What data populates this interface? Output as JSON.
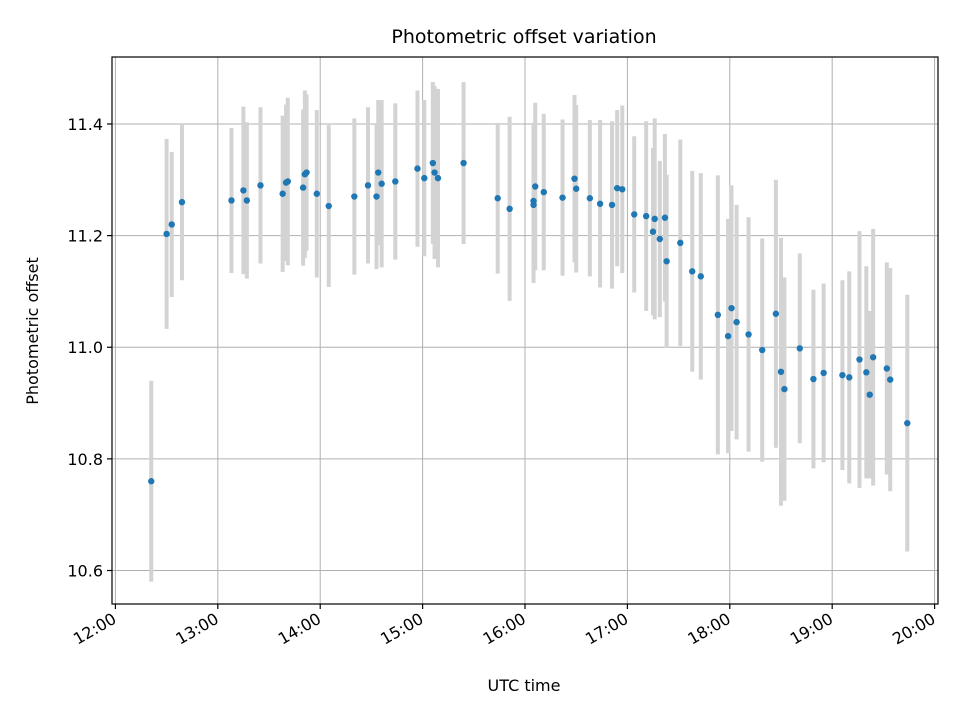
{
  "chart_data": {
    "type": "scatter",
    "title": "Photometric offset variation",
    "xlabel": "UTC time",
    "ylabel": "Photometric offset",
    "x_ticks": [
      "12:00",
      "13:00",
      "14:00",
      "15:00",
      "16:00",
      "17:00",
      "18:00",
      "19:00",
      "20:00"
    ],
    "y_ticks": [
      "10.6",
      "10.8",
      "11.0",
      "11.2",
      "11.4"
    ],
    "xlim": [
      "11:58",
      "20:02"
    ],
    "ylim": [
      10.54,
      11.52
    ],
    "grid": true,
    "colors": {
      "points": "#1f77b4",
      "errorbars": "#d3d3d3",
      "grid": "#b0b0b0"
    },
    "series": [
      {
        "x": [
          "12:21",
          "12:30",
          "12:33",
          "12:39",
          "13:08",
          "13:15",
          "13:17",
          "13:25",
          "13:38",
          "13:40",
          "13:41",
          "13:50",
          "13:51",
          "13:52",
          "13:58",
          "14:05",
          "14:20",
          "14:28",
          "14:33",
          "14:34",
          "14:36",
          "14:44",
          "14:57",
          "15:01",
          "15:06",
          "15:07",
          "15:09",
          "15:24",
          "15:44",
          "15:51",
          "16:05",
          "16:05",
          "16:06",
          "16:11",
          "16:22",
          "16:29",
          "16:30",
          "16:38",
          "16:44",
          "16:51",
          "16:54",
          "16:57",
          "17:04",
          "17:11",
          "17:15",
          "17:16",
          "17:19",
          "17:22",
          "17:23",
          "17:31",
          "17:38",
          "17:43",
          "17:53",
          "17:59",
          "18:01",
          "18:04",
          "18:11",
          "18:19",
          "18:27",
          "18:30",
          "18:32",
          "18:41",
          "18:49",
          "18:55",
          "19:06",
          "19:10",
          "19:16",
          "19:20",
          "19:22",
          "19:24",
          "19:32",
          "19:34",
          "19:44"
        ],
        "y": [
          10.76,
          11.203,
          11.22,
          11.26,
          11.263,
          11.281,
          11.263,
          11.29,
          11.275,
          11.295,
          11.297,
          11.286,
          11.31,
          11.313,
          11.275,
          11.253,
          11.27,
          11.29,
          11.27,
          11.313,
          11.293,
          11.297,
          11.32,
          11.303,
          11.33,
          11.313,
          11.303,
          11.33,
          11.267,
          11.248,
          11.255,
          11.262,
          11.288,
          11.278,
          11.268,
          11.302,
          11.284,
          11.267,
          11.257,
          11.255,
          11.285,
          11.283,
          11.238,
          11.235,
          11.207,
          11.23,
          11.194,
          11.232,
          11.154,
          11.187,
          11.136,
          11.127,
          11.058,
          11.02,
          11.07,
          11.045,
          11.023,
          10.995,
          11.06,
          10.956,
          10.925,
          10.998,
          10.943,
          10.954,
          10.95,
          10.946,
          10.978,
          10.955,
          10.915,
          10.982,
          10.962,
          10.942,
          10.864
        ],
        "err": [
          0.18,
          0.17,
          0.13,
          0.14,
          0.13,
          0.15,
          0.14,
          0.14,
          0.14,
          0.14,
          0.15,
          0.14,
          0.15,
          0.14,
          0.15,
          0.145,
          0.14,
          0.14,
          0.13,
          0.13,
          0.15,
          0.14,
          0.14,
          0.14,
          0.145,
          0.155,
          0.16,
          0.145,
          0.135,
          0.165,
          0.14,
          0.14,
          0.15,
          0.14,
          0.14,
          0.15,
          0.15,
          0.14,
          0.15,
          0.15,
          0.14,
          0.15,
          0.14,
          0.17,
          0.15,
          0.18,
          0.14,
          0.15,
          0.155,
          0.185,
          0.18,
          0.185,
          0.25,
          0.21,
          0.22,
          0.21,
          0.21,
          0.2,
          0.24,
          0.24,
          0.2,
          0.17,
          0.16,
          0.16,
          0.17,
          0.19,
          0.23,
          0.19,
          0.15,
          0.23,
          0.19,
          0.2,
          0.23
        ]
      }
    ]
  }
}
